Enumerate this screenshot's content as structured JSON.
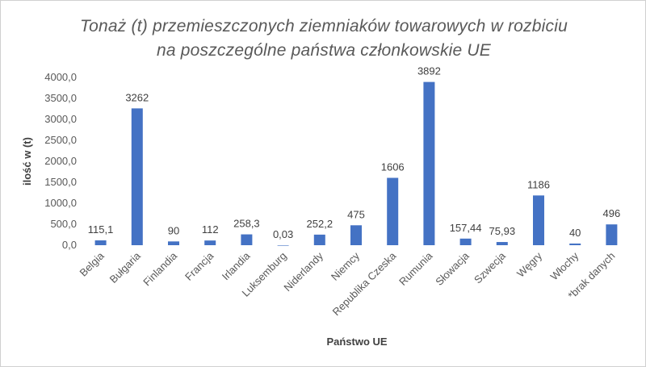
{
  "chart_data": {
    "type": "bar",
    "title": "Tonaż (t) przemieszczonych ziemniaków towarowych w rozbiciu",
    "subtitle": "na poszczególne państwa członkowskie UE",
    "xlabel": "Państwo UE",
    "ylabel": "ilość w (t)",
    "ylim": [
      0,
      4000
    ],
    "yticks": [
      "0,0",
      "500,0",
      "1000,0",
      "1500,0",
      "2000,0",
      "2500,0",
      "3000,0",
      "3500,0",
      "4000,0"
    ],
    "grid": false,
    "color": "#4472C4",
    "categories": [
      "Belgia",
      "Bułgaria",
      "Finlandia",
      "Francja",
      "Irlandia",
      "Luksemburg",
      "Niderlandy",
      "Niemcy",
      "Republika Czeska",
      "Rumunia",
      "Słowacja",
      "Szwecja",
      "Węgry",
      "Włochy",
      "*brak danych"
    ],
    "values": [
      115.1,
      3262,
      90,
      112,
      258.3,
      0.03,
      252.2,
      475,
      1606,
      3892,
      157.44,
      75.93,
      1186,
      40,
      496
    ],
    "value_labels": [
      "115,1",
      "3262",
      "90",
      "112",
      "258,3",
      "0,03",
      "252,2",
      "475",
      "1606",
      "3892",
      "157,44",
      "75,93",
      "1186",
      "40",
      "496"
    ]
  }
}
